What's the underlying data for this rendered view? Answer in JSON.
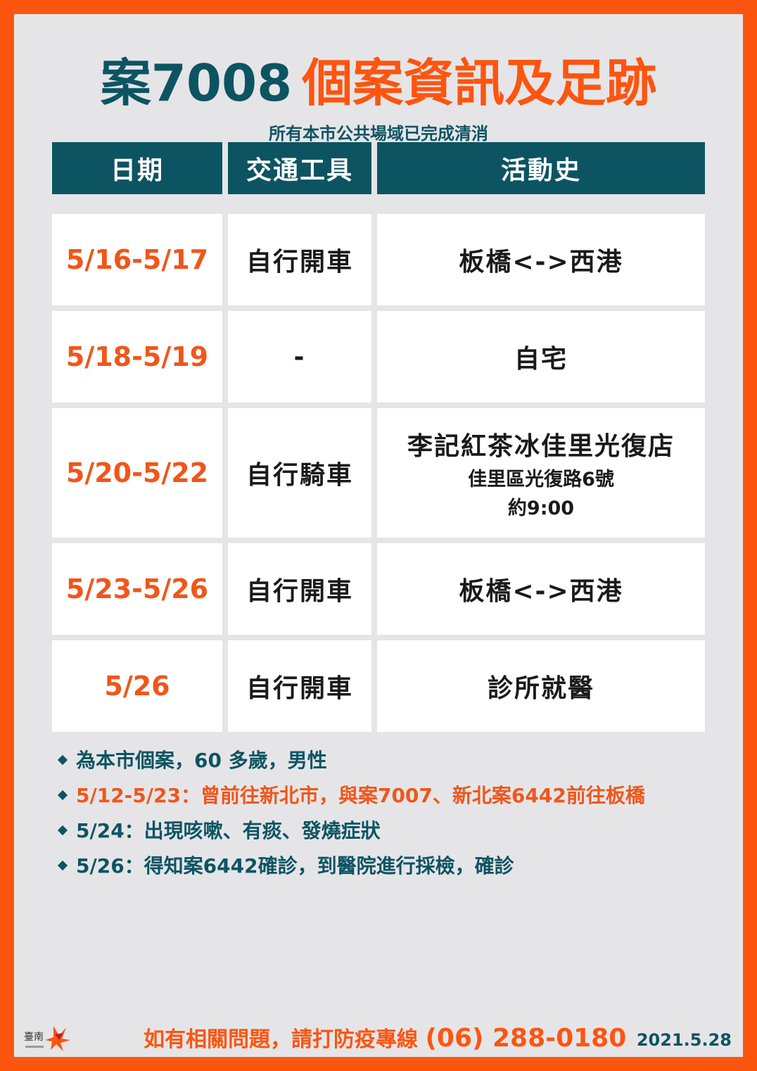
{
  "header": {
    "case_label": "案7008",
    "title": "個案資訊及足跡",
    "subtitle": "所有本市公共場域已完成清消"
  },
  "table": {
    "columns": [
      "日期",
      "交通工具",
      "活動史"
    ],
    "rows": [
      {
        "date": "5/16-5/17",
        "transport": "自行開車",
        "activity": "板橋<->西港",
        "activity_sub1": "",
        "activity_sub2": ""
      },
      {
        "date": "5/18-5/19",
        "transport": "-",
        "activity": "自宅",
        "activity_sub1": "",
        "activity_sub2": ""
      },
      {
        "date": "5/20-5/22",
        "transport": "自行騎車",
        "activity": "李記紅茶冰佳里光復店",
        "activity_sub1": "佳里區光復路6號",
        "activity_sub2": "約9:00"
      },
      {
        "date": "5/23-5/26",
        "transport": "自行開車",
        "activity": "板橋<->西港",
        "activity_sub1": "",
        "activity_sub2": ""
      },
      {
        "date": "5/26",
        "transport": "自行開車",
        "activity": "診所就醫",
        "activity_sub1": "",
        "activity_sub2": ""
      }
    ]
  },
  "notes": [
    {
      "text": "為本市個案，60 多歲，男性",
      "color": "teal"
    },
    {
      "text": "5/12-5/23：曾前往新北市，與案7007、新北案6442前往板橋",
      "color": "orange"
    },
    {
      "text": "5/24：出現咳嗽、有痰、發燒症狀",
      "color": "teal"
    },
    {
      "text": "5/26：得知案6442確診，到醫院進行採檢，確診",
      "color": "teal"
    }
  ],
  "footer": {
    "hotline_text": "如有相關問題，請打防疫專線",
    "hotline_number": "(06) 288-0180",
    "date": "2021.5.28",
    "logo_icon": "tainan-logo-icon"
  },
  "colors": {
    "accent": "#fc5510",
    "teal": "#0d5462",
    "background": "#e5e5e8"
  }
}
